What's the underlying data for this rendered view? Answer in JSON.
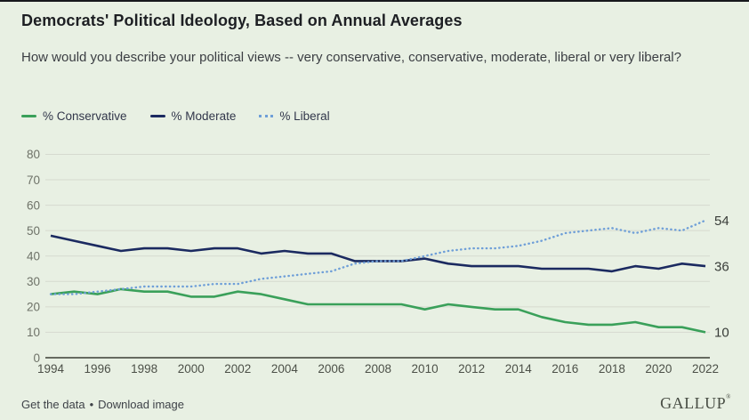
{
  "header": {
    "title": "Democrats' Political Ideology, Based on Annual Averages",
    "subtitle": "How would you describe your political views -- very conservative, conservative, moderate, liberal or very liberal?"
  },
  "chart_data": {
    "type": "line",
    "title": "Democrats' Political Ideology, Based on Annual Averages",
    "x": [
      1994,
      1995,
      1996,
      1997,
      1998,
      1999,
      2000,
      2001,
      2002,
      2003,
      2004,
      2005,
      2006,
      2007,
      2008,
      2009,
      2010,
      2011,
      2012,
      2013,
      2014,
      2015,
      2016,
      2017,
      2018,
      2019,
      2020,
      2021,
      2022
    ],
    "series": [
      {
        "id": "conservative",
        "name": "% Conservative",
        "color": "#3aa05a",
        "style": "solid",
        "end_label": "10",
        "values": [
          25,
          26,
          25,
          27,
          26,
          26,
          24,
          24,
          26,
          25,
          23,
          21,
          21,
          21,
          21,
          21,
          19,
          21,
          20,
          19,
          19,
          16,
          14,
          13,
          13,
          14,
          12,
          12,
          10
        ]
      },
      {
        "id": "moderate",
        "name": "% Moderate",
        "color": "#1b2a60",
        "style": "solid",
        "end_label": "36",
        "values": [
          48,
          46,
          44,
          42,
          43,
          43,
          42,
          43,
          43,
          41,
          42,
          41,
          41,
          38,
          38,
          38,
          39,
          37,
          36,
          36,
          36,
          35,
          35,
          35,
          34,
          36,
          35,
          37,
          36
        ]
      },
      {
        "id": "liberal",
        "name": "% Liberal",
        "color": "#6f9fd8",
        "style": "dotted",
        "end_label": "54",
        "values": [
          25,
          25,
          26,
          27,
          28,
          28,
          28,
          29,
          29,
          31,
          32,
          33,
          34,
          37,
          38,
          38,
          40,
          42,
          43,
          43,
          44,
          46,
          49,
          50,
          51,
          49,
          51,
          50,
          54
        ]
      }
    ],
    "ylim": [
      0,
      80
    ],
    "ytick_step": 10,
    "xticks": [
      1994,
      1996,
      1998,
      2000,
      2002,
      2004,
      2006,
      2008,
      2010,
      2012,
      2014,
      2016,
      2018,
      2020,
      2022
    ],
    "grid": true,
    "legend_position": "top"
  },
  "footer": {
    "links": [
      {
        "label": "Get the data"
      },
      {
        "label": "Download image"
      }
    ],
    "separator": "•",
    "brand": "GALLUP",
    "brand_mark": "®"
  }
}
